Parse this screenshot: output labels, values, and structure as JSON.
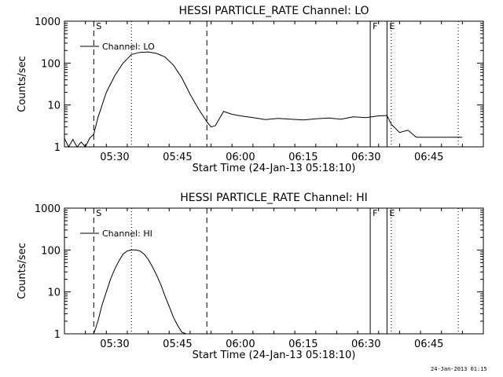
{
  "stamp": "24-Jan-2013 01:15",
  "chart_data": [
    {
      "type": "line",
      "title": "HESSI PARTICLE_RATE Channel: LO",
      "xlabel": "Start Time (24-Jan-13 05:18:10)",
      "ylabel": "Counts/sec",
      "y_scale": "log",
      "ylim": [
        1,
        1000
      ],
      "xlim": [
        "05:18",
        "06:58"
      ],
      "x_ticks": [
        "05:30",
        "05:45",
        "06:00",
        "06:15",
        "06:30",
        "06:45"
      ],
      "y_ticks": [
        "1",
        "10",
        "100",
        "1000"
      ],
      "grid": false,
      "legend": {
        "entry": "Channel: LO",
        "placement": "top-left"
      },
      "markers": [
        {
          "label": "S",
          "time": "05:25",
          "style": "dashed"
        },
        {
          "label": "",
          "time": "05:34",
          "style": "dotted"
        },
        {
          "label": "",
          "time": "05:52",
          "style": "dashed"
        },
        {
          "label": "F",
          "time": "06:31",
          "style": "solid"
        },
        {
          "label": "E",
          "time": "06:35",
          "style": "solid"
        },
        {
          "label": "",
          "time": "06:36",
          "style": "dotted"
        },
        {
          "label": "",
          "time": "06:52",
          "style": "dotted"
        }
      ],
      "series": [
        {
          "name": "Channel: LO",
          "x": [
            "05:18",
            "05:19",
            "05:20",
            "05:21",
            "05:22",
            "05:23",
            "05:24",
            "05:25",
            "05:26",
            "05:28",
            "05:30",
            "05:32",
            "05:34",
            "05:36",
            "05:38",
            "05:40",
            "05:42",
            "05:44",
            "05:46",
            "05:48",
            "05:50",
            "05:52",
            "05:53",
            "05:54",
            "05:56",
            "05:58",
            "06:00",
            "06:03",
            "06:06",
            "06:09",
            "06:12",
            "06:15",
            "06:18",
            "06:21",
            "06:24",
            "06:27",
            "06:30",
            "06:33",
            "06:35",
            "06:36",
            "06:38",
            "06:40",
            "06:42",
            "06:45",
            "06:48",
            "06:50",
            "06:52",
            "06:53"
          ],
          "values": [
            1.6,
            1.0,
            1.5,
            1.0,
            1.3,
            1.0,
            1.6,
            2.0,
            5,
            20,
            50,
            100,
            160,
            180,
            185,
            170,
            140,
            90,
            45,
            18,
            8,
            4,
            3.0,
            3.2,
            7,
            6,
            5.5,
            5,
            4.5,
            4.8,
            4.6,
            4.4,
            4.7,
            4.9,
            4.6,
            5.2,
            5.0,
            5.5,
            5.6,
            3.5,
            2.2,
            2.5,
            1.7,
            1.7,
            1.7,
            1.7,
            1.7,
            1.7
          ]
        }
      ]
    },
    {
      "type": "line",
      "title": "HESSI PARTICLE_RATE Channel: HI",
      "xlabel": "Start Time (24-Jan-13 05:18:10)",
      "ylabel": "Counts/sec",
      "y_scale": "log",
      "ylim": [
        1,
        1000
      ],
      "xlim": [
        "05:18",
        "06:58"
      ],
      "x_ticks": [
        "05:30",
        "05:45",
        "06:00",
        "06:15",
        "06:30",
        "06:45"
      ],
      "y_ticks": [
        "1",
        "10",
        "100",
        "1000"
      ],
      "grid": false,
      "legend": {
        "entry": "Channel: HI",
        "placement": "top-left"
      },
      "markers": [
        {
          "label": "S",
          "time": "05:25",
          "style": "dashed"
        },
        {
          "label": "",
          "time": "05:34",
          "style": "dotted"
        },
        {
          "label": "",
          "time": "05:52",
          "style": "dashed"
        },
        {
          "label": "F",
          "time": "06:31",
          "style": "solid"
        },
        {
          "label": "E",
          "time": "06:35",
          "style": "solid"
        },
        {
          "label": "",
          "time": "06:36",
          "style": "dotted"
        },
        {
          "label": "",
          "time": "06:52",
          "style": "dotted"
        }
      ],
      "series": [
        {
          "name": "Channel: HI",
          "x": [
            "05:25",
            "05:26",
            "05:27",
            "05:28",
            "05:29",
            "05:30",
            "05:31",
            "05:32",
            "05:33",
            "05:34",
            "05:35",
            "05:36",
            "05:37",
            "05:38",
            "05:39",
            "05:40",
            "05:41",
            "05:42",
            "05:43",
            "05:44",
            "05:45",
            "05:46",
            "05:47"
          ],
          "values": [
            1,
            2,
            5,
            10,
            20,
            35,
            55,
            80,
            95,
            100,
            100,
            95,
            80,
            60,
            40,
            25,
            15,
            8,
            4.5,
            2.5,
            1.6,
            1.1,
            1
          ]
        }
      ]
    }
  ]
}
